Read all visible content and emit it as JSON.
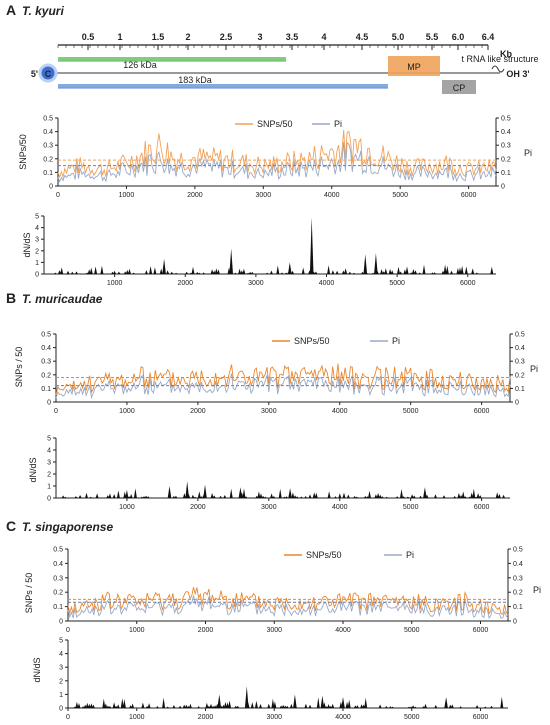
{
  "chart_data": [
    {
      "type": "line",
      "panel": "A",
      "species": "T. kyuri",
      "xlim": [
        0,
        6400
      ],
      "x_ticks": [
        1000,
        2000,
        3000,
        4000,
        5000,
        6000
      ],
      "left_ylabel": "SNPs/50",
      "right_ylabel": "Pi",
      "ylim": [
        0,
        0.5
      ],
      "y_ticks": [
        "0",
        "0.1",
        "0.2",
        "0.3",
        "0.4",
        "0.5"
      ],
      "legend": [
        "SNPs/50",
        "Pi"
      ],
      "series": [
        {
          "name": "SNPs/50",
          "color": "#f0a25a",
          "mean": 0.19
        },
        {
          "name": "Pi",
          "color": "#9aa9c6",
          "mean": 0.15
        }
      ],
      "peaks": [
        [
          0,
          0.15
        ],
        [
          300,
          0.22
        ],
        [
          700,
          0.18
        ],
        [
          1000,
          0.25
        ],
        [
          1500,
          0.44
        ],
        [
          1700,
          0.3
        ],
        [
          2000,
          0.3
        ],
        [
          2500,
          0.28
        ],
        [
          3000,
          0.22
        ],
        [
          3600,
          0.28
        ],
        [
          4100,
          0.4
        ],
        [
          4300,
          0.46
        ],
        [
          4500,
          0.42
        ],
        [
          4800,
          0.3
        ],
        [
          5200,
          0.2
        ],
        [
          5700,
          0.25
        ],
        [
          6000,
          0.18
        ],
        [
          6300,
          0.2
        ]
      ],
      "dnds": {
        "ylabel": "dN/dS",
        "ylim": [
          0,
          5
        ],
        "y_ticks": [
          "0",
          "1",
          "2",
          "3",
          "4",
          "5"
        ],
        "x_ticks": [
          1000,
          2000,
          3000,
          4000,
          5000,
          6000
        ],
        "spikes": [
          [
            3790,
            4.9
          ],
          [
            2650,
            2.2
          ],
          [
            4550,
            1.7
          ],
          [
            4700,
            1.8
          ],
          [
            1700,
            1.3
          ],
          [
            3480,
            1.0
          ]
        ]
      },
      "genome": {
        "kb_ticks": [
          "0.5",
          "1",
          "1.5",
          "2",
          "2.5",
          "3",
          "3.5",
          "4",
          "4.5",
          "5.0",
          "5.5",
          "6.0",
          "6.4"
        ],
        "kb_label": "Kb",
        "five_prime": "5'",
        "cap": "C",
        "three_prime": "OH 3'",
        "trna": "t RNA like structure",
        "genes": [
          {
            "label": "126 kDa",
            "color": "#6fc16b"
          },
          {
            "label": "183 kDa",
            "color": "#6f9bd8"
          },
          {
            "label": "MP",
            "color": "#f0a25a"
          },
          {
            "label": "CP",
            "color": "#9a9a9a"
          }
        ]
      }
    },
    {
      "type": "line",
      "panel": "B",
      "species": "T. muricaudae",
      "xlim": [
        0,
        6400
      ],
      "x_ticks": [
        1000,
        2000,
        3000,
        4000,
        5000,
        6000
      ],
      "left_ylabel": "SNPs / 50",
      "right_ylabel": "Pi",
      "ylim": [
        0,
        0.5
      ],
      "y_ticks": [
        "0",
        "0.1",
        "0.2",
        "0.3",
        "0.4",
        "0.5"
      ],
      "legend": [
        "SNPs/50",
        "Pi"
      ],
      "series": [
        {
          "name": "SNPs/50",
          "color": "#e9872f",
          "mean": 0.18
        },
        {
          "name": "Pi",
          "color": "#9aa9c6",
          "mean": 0.12
        }
      ],
      "peaks": [
        [
          0,
          0.12
        ],
        [
          600,
          0.22
        ],
        [
          1200,
          0.26
        ],
        [
          1800,
          0.25
        ],
        [
          2200,
          0.3
        ],
        [
          2600,
          0.28
        ],
        [
          3200,
          0.27
        ],
        [
          3800,
          0.32
        ],
        [
          4200,
          0.26
        ],
        [
          4800,
          0.27
        ],
        [
          5200,
          0.25
        ],
        [
          5800,
          0.22
        ],
        [
          6200,
          0.2
        ]
      ],
      "dnds": {
        "ylabel": "dN/dS",
        "ylim": [
          0,
          5
        ],
        "y_ticks": [
          "0",
          "1",
          "2",
          "3",
          "4",
          "5"
        ],
        "x_ticks": [
          1000,
          2000,
          3000,
          4000,
          5000,
          6000
        ],
        "spikes": [
          [
            1850,
            1.4
          ],
          [
            2100,
            1.1
          ],
          [
            1600,
            1.0
          ],
          [
            2600,
            0.9
          ],
          [
            3300,
            0.8
          ],
          [
            5200,
            0.9
          ]
        ]
      }
    },
    {
      "type": "line",
      "panel": "C",
      "species": "T. singaporense",
      "xlim": [
        0,
        6400
      ],
      "x_ticks": [
        1000,
        2000,
        3000,
        4000,
        5000,
        6000
      ],
      "left_ylabel": "SNPs / 50",
      "right_ylabel": "Pi",
      "ylim": [
        0,
        0.5
      ],
      "y_ticks": [
        "0",
        "0.1",
        "0.2",
        "0.3",
        "0.4",
        "0.5"
      ],
      "legend": [
        "SNPs/50",
        "Pi"
      ],
      "series": [
        {
          "name": "SNPs/50",
          "color": "#e9872f",
          "mean": 0.15
        },
        {
          "name": "Pi",
          "color": "#9aa9c6",
          "mean": 0.13
        }
      ],
      "peaks": [
        [
          0,
          0.12
        ],
        [
          500,
          0.2
        ],
        [
          1000,
          0.2
        ],
        [
          1500,
          0.22
        ],
        [
          2100,
          0.26
        ],
        [
          2600,
          0.2
        ],
        [
          3000,
          0.18
        ],
        [
          3600,
          0.2
        ],
        [
          4200,
          0.2
        ],
        [
          4700,
          0.2
        ],
        [
          5300,
          0.18
        ],
        [
          5800,
          0.2
        ],
        [
          6300,
          0.12
        ]
      ],
      "dnds": {
        "ylabel": "dN/dS",
        "ylim": [
          0,
          5
        ],
        "y_ticks": [
          "0",
          "1",
          "2",
          "3",
          "4",
          "5"
        ],
        "x_ticks": [
          0,
          1000,
          2000,
          3000,
          4000,
          5000,
          6000
        ],
        "spikes": [
          [
            2600,
            1.6
          ],
          [
            2200,
            1.0
          ],
          [
            3300,
            1.0
          ],
          [
            3700,
            0.9
          ],
          [
            4000,
            0.8
          ],
          [
            5500,
            0.8
          ]
        ]
      }
    }
  ]
}
